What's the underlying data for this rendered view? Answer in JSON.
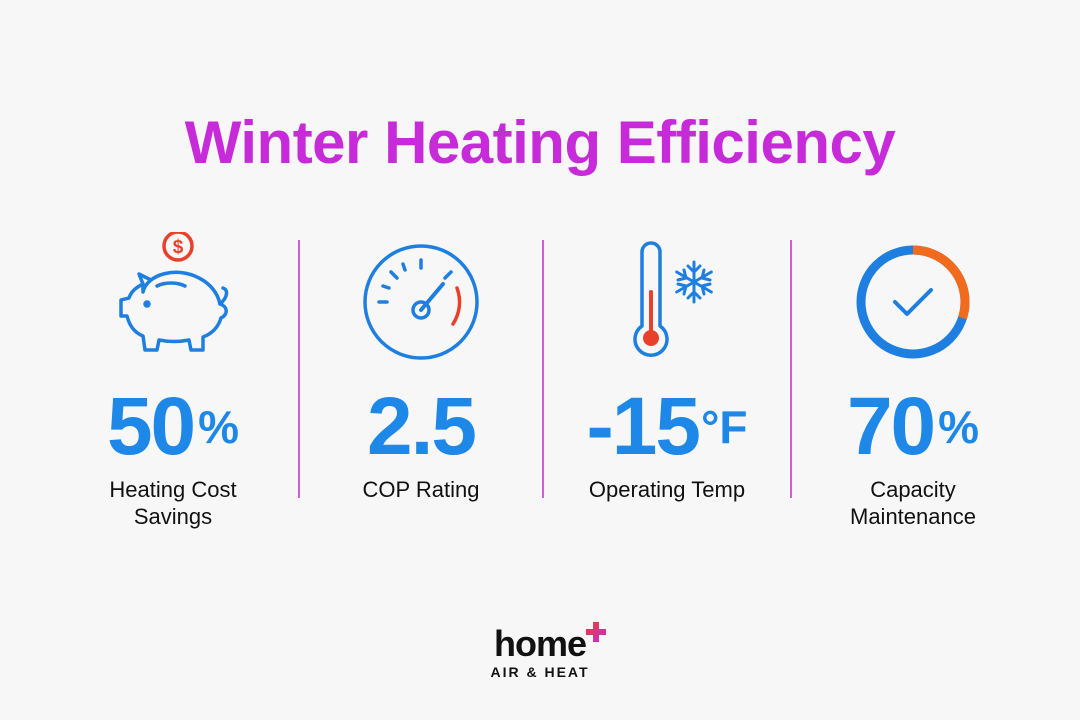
{
  "title": "Winter Heating Efficiency",
  "colors": {
    "title": "#c72bd9",
    "value": "#1e88e8",
    "accent_red": "#e8402a",
    "accent_orange": "#f26b1d",
    "divider": "#cf5fd6"
  },
  "stats": [
    {
      "icon": "piggy-bank-dollar-icon",
      "value": "50",
      "unit": "%",
      "label": "Heating Cost\nSavings"
    },
    {
      "icon": "gauge-meter-icon",
      "value": "2.5",
      "unit": "",
      "label": "COP Rating"
    },
    {
      "icon": "thermometer-snowflake-icon",
      "value": "-15",
      "unit": "°F",
      "label": "Operating Temp"
    },
    {
      "icon": "progress-ring-check-icon",
      "value": "70",
      "unit": "%",
      "label": "Capacity\nMaintenance"
    }
  ],
  "brand": {
    "name": "home",
    "tagline": "AIR & HEAT",
    "logo_icon": "plus-icon"
  }
}
